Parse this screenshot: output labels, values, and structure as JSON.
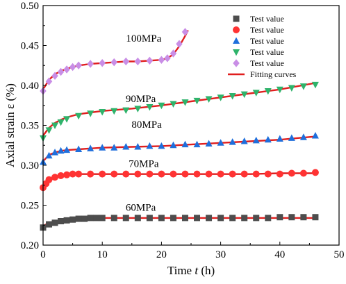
{
  "chart_data": {
    "type": "scatter",
    "xlabel": "Time t (h)",
    "xlabel_parts": [
      "Time ",
      "t",
      " (h)"
    ],
    "ylabel": "Axial strain ε (%)",
    "xlim": [
      0,
      50
    ],
    "ylim": [
      0.2,
      0.5
    ],
    "xticks": [
      0,
      10,
      20,
      30,
      40,
      50
    ],
    "xtick_labels": [
      "0",
      "10",
      "20",
      "30",
      "40",
      "50"
    ],
    "yticks": [
      0.2,
      0.25,
      0.3,
      0.35,
      0.4,
      0.45,
      0.5
    ],
    "ytick_labels": [
      "0.20",
      "0.25",
      "0.30",
      "0.35",
      "0.40",
      "0.45",
      "0.50"
    ],
    "legend_position": "top-right",
    "series": [
      {
        "name": "Test value",
        "label": "60MPa",
        "marker": "square",
        "color": "#4d4d4d",
        "x": [
          0,
          1,
          2,
          3,
          4,
          5,
          6,
          7,
          8,
          9,
          10,
          12,
          14,
          16,
          18,
          20,
          22,
          24,
          26,
          28,
          30,
          32,
          34,
          36,
          38,
          40,
          42,
          44,
          46
        ],
        "y": [
          0.222,
          0.226,
          0.228,
          0.23,
          0.231,
          0.232,
          0.233,
          0.233,
          0.234,
          0.234,
          0.234,
          0.234,
          0.234,
          0.234,
          0.234,
          0.234,
          0.234,
          0.234,
          0.234,
          0.234,
          0.234,
          0.234,
          0.234,
          0.234,
          0.234,
          0.235,
          0.235,
          0.235,
          0.235
        ]
      },
      {
        "name": "Test value",
        "label": "70MPa",
        "marker": "circle",
        "color": "#ff3333",
        "x": [
          0,
          0.5,
          1,
          2,
          3,
          4,
          5,
          6,
          8,
          10,
          12,
          14,
          16,
          18,
          20,
          22,
          24,
          26,
          28,
          30,
          32,
          34,
          36,
          38,
          40,
          42,
          44,
          46
        ],
        "y": [
          0.272,
          0.277,
          0.282,
          0.285,
          0.287,
          0.288,
          0.289,
          0.289,
          0.289,
          0.289,
          0.289,
          0.289,
          0.289,
          0.289,
          0.289,
          0.289,
          0.289,
          0.289,
          0.289,
          0.289,
          0.289,
          0.289,
          0.289,
          0.289,
          0.289,
          0.29,
          0.29,
          0.291
        ]
      },
      {
        "name": "Test value",
        "label": "80MPa",
        "marker": "triangle-up",
        "color": "#1f6fdc",
        "x": [
          0,
          1,
          2,
          3,
          4,
          6,
          8,
          10,
          12,
          14,
          16,
          18,
          20,
          22,
          24,
          26,
          28,
          30,
          32,
          34,
          36,
          38,
          40,
          42,
          44,
          46
        ],
        "y": [
          0.304,
          0.312,
          0.316,
          0.318,
          0.319,
          0.32,
          0.321,
          0.322,
          0.322,
          0.323,
          0.323,
          0.324,
          0.324,
          0.325,
          0.326,
          0.326,
          0.327,
          0.328,
          0.329,
          0.33,
          0.331,
          0.332,
          0.333,
          0.334,
          0.335,
          0.337
        ]
      },
      {
        "name": "Test value",
        "label": "90MPa",
        "marker": "triangle-down",
        "color": "#2fb36b",
        "x": [
          0,
          1,
          2,
          3,
          4,
          6,
          8,
          10,
          12,
          14,
          16,
          18,
          20,
          22,
          24,
          26,
          28,
          30,
          32,
          34,
          36,
          38,
          40,
          42,
          44,
          46
        ],
        "y": [
          0.334,
          0.344,
          0.35,
          0.354,
          0.358,
          0.362,
          0.365,
          0.367,
          0.368,
          0.369,
          0.371,
          0.373,
          0.375,
          0.377,
          0.379,
          0.381,
          0.383,
          0.385,
          0.387,
          0.389,
          0.391,
          0.393,
          0.395,
          0.397,
          0.399,
          0.401
        ]
      },
      {
        "name": "Test value",
        "label": "100MPa",
        "marker": "diamond",
        "color": "#c98ee6",
        "x": [
          0,
          1,
          2,
          3,
          4,
          5,
          6,
          8,
          10,
          12,
          14,
          16,
          18,
          20,
          21,
          22,
          23,
          24
        ],
        "y": [
          0.393,
          0.405,
          0.412,
          0.417,
          0.42,
          0.423,
          0.425,
          0.427,
          0.428,
          0.429,
          0.43,
          0.43,
          0.431,
          0.432,
          0.434,
          0.44,
          0.452,
          0.467
        ]
      }
    ],
    "fitting_curves": {
      "name": "Fitting curves",
      "color": "#e01e1e",
      "curves": [
        {
          "for": "60MPa",
          "x": [
            0,
            1,
            2,
            3,
            4,
            6,
            8,
            10,
            15,
            20,
            25,
            30,
            35,
            40,
            46
          ],
          "y": [
            0.224,
            0.228,
            0.23,
            0.231,
            0.232,
            0.233,
            0.233,
            0.234,
            0.234,
            0.234,
            0.234,
            0.234,
            0.234,
            0.234,
            0.234
          ]
        },
        {
          "for": "70MPa",
          "x": [
            0,
            0.5,
            1,
            2,
            3,
            4,
            6,
            8,
            10,
            15,
            20,
            25,
            30,
            35,
            40,
            46
          ],
          "y": [
            0.273,
            0.278,
            0.282,
            0.285,
            0.287,
            0.288,
            0.289,
            0.289,
            0.289,
            0.289,
            0.289,
            0.289,
            0.289,
            0.289,
            0.29,
            0.29
          ]
        },
        {
          "for": "80MPa",
          "x": [
            0,
            1,
            2,
            3,
            4,
            6,
            8,
            10,
            15,
            20,
            25,
            30,
            35,
            40,
            46
          ],
          "y": [
            0.305,
            0.313,
            0.316,
            0.318,
            0.319,
            0.32,
            0.321,
            0.322,
            0.323,
            0.324,
            0.326,
            0.328,
            0.33,
            0.332,
            0.336
          ]
        },
        {
          "for": "90MPa",
          "x": [
            0,
            1,
            2,
            3,
            4,
            6,
            8,
            10,
            15,
            20,
            25,
            30,
            35,
            40,
            46
          ],
          "y": [
            0.337,
            0.347,
            0.353,
            0.357,
            0.36,
            0.364,
            0.366,
            0.368,
            0.371,
            0.375,
            0.38,
            0.385,
            0.39,
            0.395,
            0.403
          ]
        },
        {
          "for": "100MPa",
          "x": [
            0,
            1,
            2,
            3,
            4,
            5,
            6,
            8,
            10,
            12,
            14,
            16,
            18,
            20,
            21,
            22,
            23,
            24,
            24.5
          ],
          "y": [
            0.395,
            0.407,
            0.414,
            0.418,
            0.421,
            0.423,
            0.425,
            0.427,
            0.428,
            0.429,
            0.43,
            0.43,
            0.431,
            0.432,
            0.434,
            0.439,
            0.449,
            0.462,
            0.469
          ]
        }
      ]
    },
    "annotations": [
      {
        "text": "100MPa",
        "x": 17,
        "y": 0.455
      },
      {
        "text": "90MPa",
        "x": 16.5,
        "y": 0.379
      },
      {
        "text": "80MPa",
        "x": 17.5,
        "y": 0.347
      },
      {
        "text": "70MPa",
        "x": 17,
        "y": 0.298
      },
      {
        "text": "60MPa",
        "x": 16.5,
        "y": 0.243
      }
    ]
  }
}
